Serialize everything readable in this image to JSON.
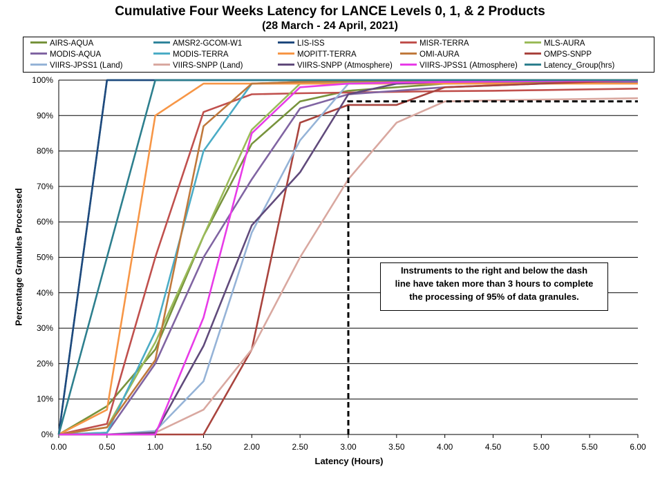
{
  "chart_data": {
    "type": "line",
    "title": "Cumulative Four Weeks Latency  for LANCE Levels 0, 1, & 2 Products",
    "subtitle": "(28  March   -  24  April,  2021)",
    "xlabel": "Latency (Hours)",
    "ylabel": "Percentage Granules Processed",
    "x": [
      0,
      0.5,
      1,
      1.5,
      2,
      2.5,
      3,
      3.5,
      4,
      4.5,
      5,
      5.5,
      6
    ],
    "x_tick_labels": [
      "0.00",
      "0.50",
      "1.00",
      "1.50",
      "2.00",
      "2.50",
      "3.00",
      "3.50",
      "4.00",
      "4.50",
      "5.00",
      "5.50",
      "6.00"
    ],
    "y_tick_labels": [
      "0%",
      "10%",
      "20%",
      "30%",
      "40%",
      "50%",
      "60%",
      "70%",
      "80%",
      "90%",
      "100%"
    ],
    "xlim": [
      0,
      6
    ],
    "ylim": [
      0,
      100
    ],
    "grid": "horizontal",
    "legend_position": "top",
    "series": [
      {
        "name": "AIRS-AQUA",
        "color": "#77933C",
        "values": [
          0,
          8,
          24,
          56,
          82,
          94,
          97,
          98,
          99,
          99.2,
          99.4,
          99.6,
          99.8
        ]
      },
      {
        "name": "AMSR2-GCOM-W1",
        "color": "#31859C",
        "values": [
          0,
          100,
          100,
          100,
          100,
          100,
          100,
          100,
          100,
          100,
          100,
          100,
          100
        ]
      },
      {
        "name": "LIS-ISS",
        "color": "#1F497D",
        "values": [
          0,
          100,
          100,
          100,
          100,
          100,
          100,
          100,
          100,
          100,
          100,
          100,
          100
        ]
      },
      {
        "name": "MISR-TERRA",
        "color": "#C0504D",
        "values": [
          0,
          3,
          50,
          91,
          96,
          96.3,
          96.5,
          96.7,
          96.9,
          97,
          97.2,
          97.4,
          97.6
        ]
      },
      {
        "name": "MLS-AURA",
        "color": "#9BBB59",
        "values": [
          0,
          2,
          26,
          56,
          86,
          99,
          99.5,
          99.6,
          99.7,
          99.8,
          99.9,
          99.9,
          100
        ]
      },
      {
        "name": "MODIS-AQUA",
        "color": "#8064A2",
        "values": [
          0,
          0.5,
          20,
          50,
          72,
          92,
          96,
          97,
          98,
          98.5,
          99,
          99.3,
          99.5
        ]
      },
      {
        "name": "MODIS-TERRA",
        "color": "#4BACC6",
        "values": [
          0,
          0.5,
          29,
          80,
          99,
          99.5,
          99.7,
          99.8,
          99.9,
          100,
          100,
          100,
          100
        ]
      },
      {
        "name": "MOPITT-TERRA",
        "color": "#F79646",
        "values": [
          0,
          7,
          90,
          99,
          99,
          99,
          99,
          99,
          99,
          99,
          99,
          99,
          99
        ]
      },
      {
        "name": "OMI-AURA",
        "color": "#C0793C",
        "values": [
          0,
          2,
          21,
          87,
          99,
          99.5,
          99.7,
          99.8,
          99.9,
          100,
          100,
          100,
          100
        ]
      },
      {
        "name": "OMPS-SNPP",
        "color": "#A9443E",
        "values": [
          0,
          0,
          0,
          0,
          24,
          88,
          93,
          93,
          98,
          98.5,
          99,
          99.5,
          100
        ]
      },
      {
        "name": "VIIRS-JPSS1 (Land)",
        "color": "#95B3D7",
        "values": [
          0,
          0,
          1,
          15,
          57,
          83,
          99,
          99.3,
          99.5,
          99.6,
          99.7,
          99.8,
          99.9
        ]
      },
      {
        "name": "VIIRS-SNPP (Land)",
        "color": "#D9A8A0",
        "values": [
          0,
          0,
          0.5,
          7,
          24,
          50,
          72,
          88,
          94,
          94.3,
          94.5,
          94.7,
          94.9
        ]
      },
      {
        "name": "VIIRS-SNPP (Atmosphere)",
        "color": "#604A7B",
        "values": [
          0,
          0,
          0.5,
          25,
          59,
          74,
          96,
          99,
          99.5,
          99.6,
          99.7,
          99.8,
          99.9
        ]
      },
      {
        "name": "VIIRS-JPSS1 (Atmosphere)",
        "color": "#E83BE8",
        "values": [
          0,
          0,
          0,
          33,
          85,
          98,
          99,
          99.3,
          99.5,
          99.6,
          99.7,
          99.8,
          99.9
        ]
      },
      {
        "name": "Latency_Group(hrs)",
        "color": "#2D7F8E",
        "values": [
          0,
          50,
          100,
          100,
          100,
          100,
          100,
          100,
          100,
          100,
          100,
          100,
          100
        ]
      }
    ],
    "threshold_line": {
      "style": "dashed",
      "color": "#000000",
      "x": [
        3,
        3,
        6
      ],
      "y": [
        0,
        94,
        94
      ]
    },
    "annotation": {
      "lines": [
        "Instruments to the right and below the dash",
        "line have taken more than 3 hours to complete",
        "the processing of 95% of data granules."
      ]
    }
  }
}
